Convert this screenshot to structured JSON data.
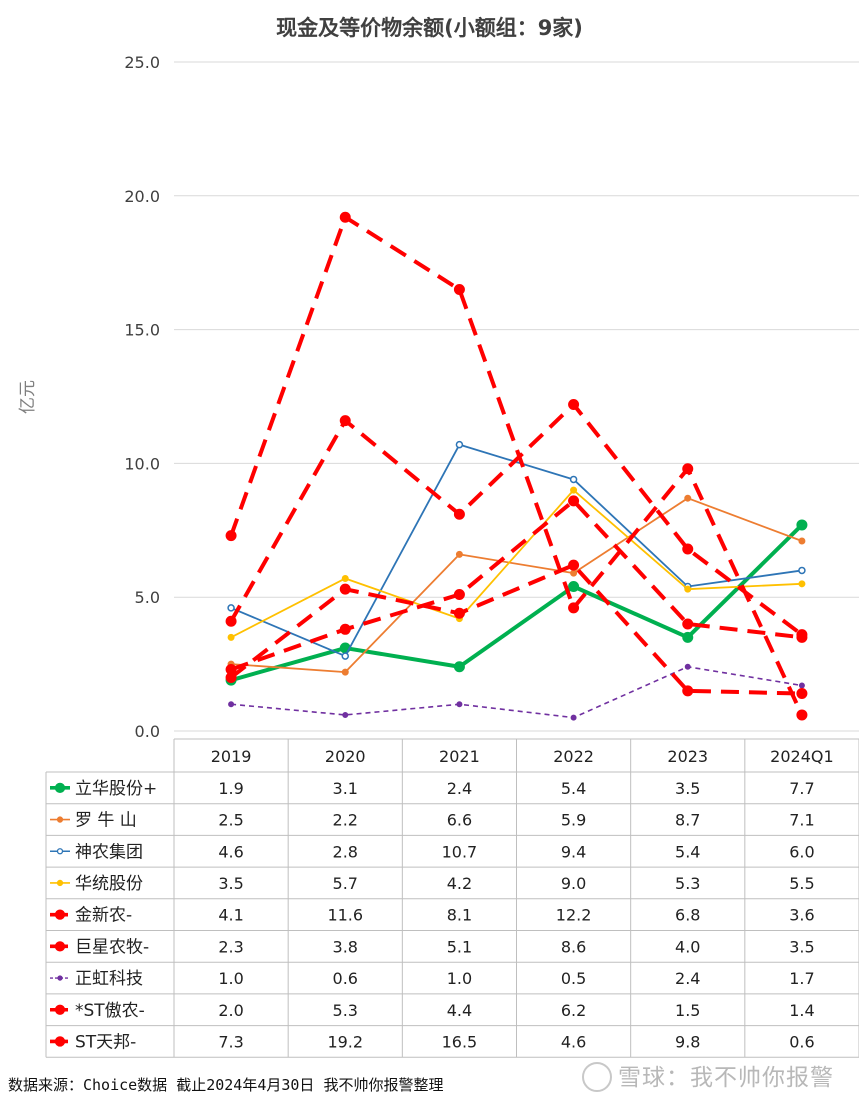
{
  "chart_data": {
    "type": "line",
    "title": "现金及等价物余额(小额组：9家)",
    "ylabel": "亿元",
    "ylim": [
      0,
      25
    ],
    "yticks": [
      "0.0",
      "5.0",
      "10.0",
      "15.0",
      "20.0",
      "25.0"
    ],
    "grid": true,
    "legend": "table-bottom",
    "categories": [
      "2019",
      "2020",
      "2021",
      "2022",
      "2023",
      "2024Q1"
    ],
    "series": [
      {
        "name": "立华股份+",
        "values": [
          1.9,
          3.1,
          2.4,
          5.4,
          3.5,
          7.7
        ],
        "labels": [
          "1.9",
          "3.1",
          "2.4",
          "5.4",
          "3.5",
          "7.7"
        ],
        "color": "#00b050",
        "style": "solid-thick"
      },
      {
        "name": "罗 牛 山",
        "values": [
          2.5,
          2.2,
          6.6,
          5.9,
          8.7,
          7.1
        ],
        "labels": [
          "2.5",
          "2.2",
          "6.6",
          "5.9",
          "8.7",
          "7.1"
        ],
        "color": "#ed7d31",
        "style": "solid"
      },
      {
        "name": "神农集团",
        "values": [
          4.6,
          2.8,
          10.7,
          9.4,
          5.4,
          6.0
        ],
        "labels": [
          "4.6",
          "2.8",
          "10.7",
          "9.4",
          "5.4",
          "6.0"
        ],
        "color": "#2e75b6",
        "style": "solid-open"
      },
      {
        "name": "华统股份",
        "values": [
          3.5,
          5.7,
          4.2,
          9.0,
          5.3,
          5.5
        ],
        "labels": [
          "3.5",
          "5.7",
          "4.2",
          "9.0",
          "5.3",
          "5.5"
        ],
        "color": "#ffc000",
        "style": "solid"
      },
      {
        "name": "金新农-",
        "values": [
          4.1,
          11.6,
          8.1,
          12.2,
          6.8,
          3.6
        ],
        "labels": [
          "4.1",
          "11.6",
          "8.1",
          "12.2",
          "6.8",
          "3.6"
        ],
        "color": "#ff0000",
        "style": "dashed-thick"
      },
      {
        "name": "巨星农牧-",
        "values": [
          2.3,
          3.8,
          5.1,
          8.6,
          4.0,
          3.5
        ],
        "labels": [
          "2.3",
          "3.8",
          "5.1",
          "8.6",
          "4.0",
          "3.5"
        ],
        "color": "#ff0000",
        "style": "dashed-thick"
      },
      {
        "name": "正虹科技",
        "values": [
          1.0,
          0.6,
          1.0,
          0.5,
          2.4,
          1.7
        ],
        "labels": [
          "1.0",
          "0.6",
          "1.0",
          "0.5",
          "2.4",
          "1.7"
        ],
        "color": "#7030a0",
        "style": "dashed-thin"
      },
      {
        "name": "*ST傲农-",
        "values": [
          2.0,
          5.3,
          4.4,
          6.2,
          1.5,
          1.4
        ],
        "labels": [
          "2.0",
          "5.3",
          "4.4",
          "6.2",
          "1.5",
          "1.4"
        ],
        "color": "#ff0000",
        "style": "dashed-thick"
      },
      {
        "name": "ST天邦-",
        "values": [
          7.3,
          19.2,
          16.5,
          4.6,
          9.8,
          0.6
        ],
        "labels": [
          "7.3",
          "19.2",
          "16.5",
          "4.6",
          "9.8",
          "0.6"
        ],
        "color": "#ff0000",
        "style": "dashed-thick"
      }
    ]
  },
  "footer": "数据来源：Choice数据  截止2024年4月30日 我不帅你报警整理",
  "watermark": "雪球：我不帅你报警"
}
